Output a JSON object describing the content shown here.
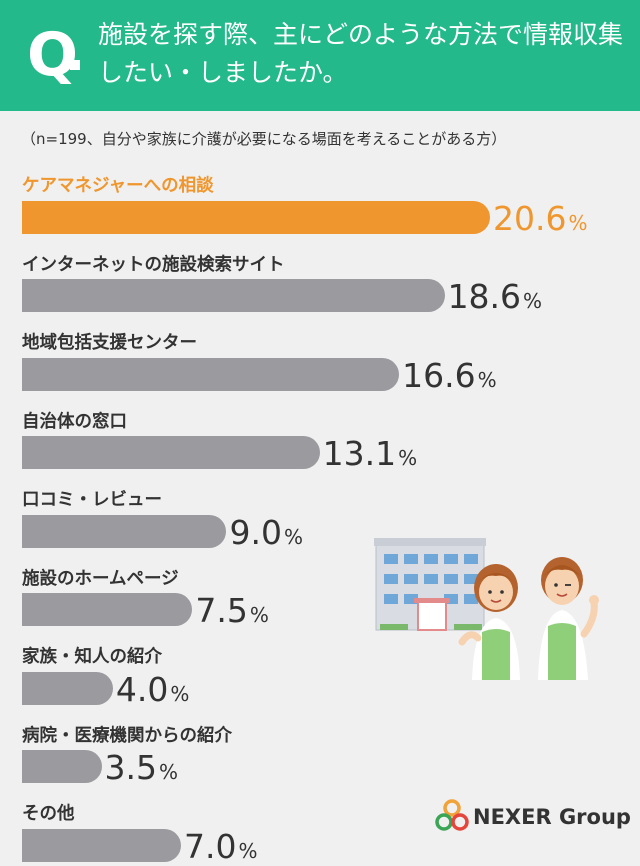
{
  "header": {
    "q_mark": "Q",
    "question": "施設を探す際、主にどのような方法で情報収集したい・しましたか。"
  },
  "sample_note": "（n=199、自分や家族に介護が必要になる場面を考えることがある方）",
  "chart_data": {
    "type": "bar",
    "orientation": "horizontal",
    "categories": [
      "ケアマネジャーへの相談",
      "インターネットの施設検索サイト",
      "地域包括支援センター",
      "自治体の窓口",
      "口コミ・レビュー",
      "施設のホームページ",
      "家族・知人の紹介",
      "病院・医療機関からの紹介",
      "その他"
    ],
    "values": [
      20.6,
      18.6,
      16.6,
      13.1,
      9.0,
      7.5,
      4.0,
      3.5,
      7.0
    ],
    "value_labels": [
      "20.6",
      "18.6",
      "16.6",
      "13.1",
      "9.0",
      "7.5",
      "4.0",
      "3.5",
      "7.0"
    ],
    "unit": "%",
    "highlight_index": 0,
    "colors": {
      "highlight": "#f0962e",
      "default": "#9a9a9f"
    },
    "grid": false,
    "legend": "none"
  },
  "brand": {
    "name": "NEXER Group"
  },
  "colors": {
    "header_bg": "#23b98a",
    "page_bg": "#f0f0f0"
  }
}
